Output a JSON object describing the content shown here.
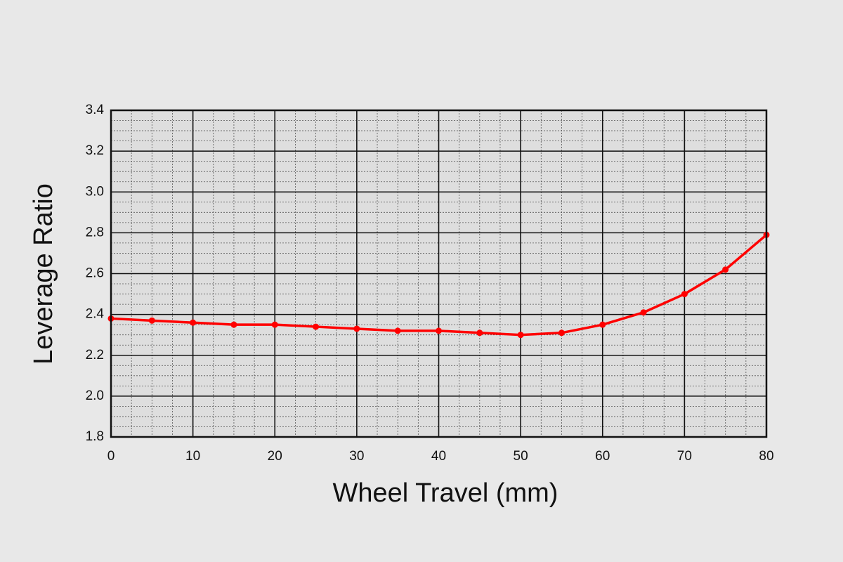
{
  "chart_data": {
    "type": "line",
    "x_label": "Wheel Travel (mm)",
    "y_label": "Leverage Ratio",
    "x": [
      0,
      5,
      10,
      15,
      20,
      25,
      30,
      35,
      40,
      45,
      50,
      55,
      60,
      65,
      70,
      75,
      80
    ],
    "series": [
      {
        "color": "#ff0000",
        "values": [
          2.38,
          2.37,
          2.36,
          2.35,
          2.35,
          2.34,
          2.33,
          2.32,
          2.32,
          2.31,
          2.3,
          2.31,
          2.35,
          2.41,
          2.5,
          2.62,
          2.79
        ]
      }
    ],
    "xlim": [
      0,
      80
    ],
    "xticks": [
      0,
      10,
      20,
      30,
      40,
      50,
      60,
      70,
      80
    ],
    "ylim": [
      1.8,
      3.4
    ],
    "yticks": [
      1.8,
      {
        "value": 2,
        "label": "2.0"
      },
      2.2,
      2.4,
      2.6,
      2.8,
      {
        "value": 3,
        "label": "3.0"
      },
      3.2,
      3.4
    ],
    "grid": true,
    "minor_grid": true
  }
}
